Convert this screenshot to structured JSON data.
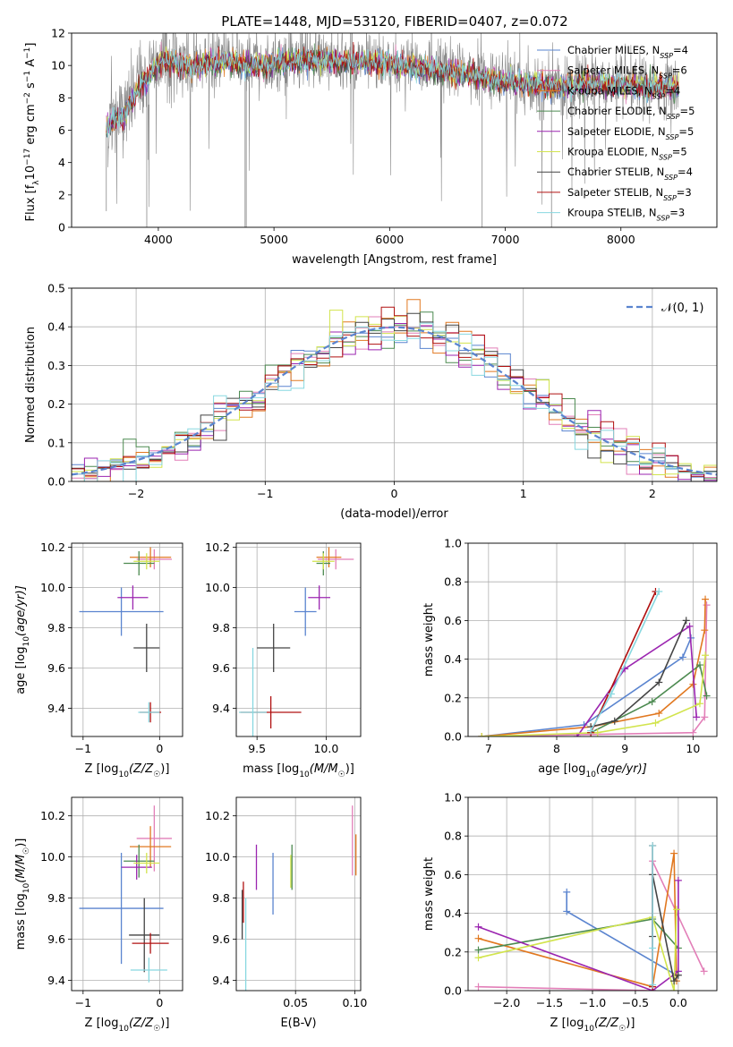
{
  "figure": {
    "title": "PLATE=1448, MJD=53120, FIBERID=0407, z=0.072"
  },
  "series_colors": {
    "Chabrier MILES": "#5a84cf",
    "Salpeter MILES": "#e27fb8",
    "Kroupa MILES": "#e17820",
    "Chabrier ELODIE": "#4c8a50",
    "Salpeter ELODIE": "#9b25b0",
    "Kroupa ELODIE": "#d2e44d",
    "Chabrier STELIB": "#444444",
    "Salpeter STELIB": "#b01010",
    "Kroupa STELIB": "#88d8e0"
  },
  "chart_data": [
    {
      "id": "spectrum",
      "type": "line",
      "xlabel": "wavelength [Angstrom, rest frame]",
      "ylabel_parts": [
        "Flux [f",
        "λ",
        "10",
        "−17",
        " erg cm",
        "−2",
        " s",
        "−1",
        " A",
        "−1",
        "]"
      ],
      "xlim": [
        3250,
        8830
      ],
      "ylim": [
        0,
        12
      ],
      "xticks": [
        "4000",
        "5000",
        "6000",
        "7000",
        "8000"
      ],
      "yticks": [
        "0",
        "2",
        "4",
        "6",
        "8",
        "10",
        "12"
      ],
      "legend_placement": "upper-right",
      "series": [
        {
          "name": "Chabrier MILES",
          "nssp": "4"
        },
        {
          "name": "Salpeter MILES",
          "nssp": "6"
        },
        {
          "name": "Kroupa MILES",
          "nssp": "4"
        },
        {
          "name": "Chabrier ELODIE",
          "nssp": "5"
        },
        {
          "name": "Salpeter ELODIE",
          "nssp": "5"
        },
        {
          "name": "Kroupa ELODIE",
          "nssp": "5"
        },
        {
          "name": "Chabrier STELIB",
          "nssp": "4"
        },
        {
          "name": "Salpeter STELIB",
          "nssp": "3"
        },
        {
          "name": "Kroupa STELIB",
          "nssp": "3"
        }
      ],
      "data_envelope": {
        "x": [
          3550,
          3600,
          3700,
          3800,
          3900,
          4000,
          4100,
          4200,
          4300,
          4400,
          4500,
          4600,
          4700,
          4800,
          4900,
          5000,
          5200,
          5400,
          5600,
          5800,
          6000,
          6200,
          6400,
          6600,
          6800,
          7000,
          7200,
          7400,
          7600,
          7800,
          8000,
          8200,
          8400,
          8500
        ],
        "y": [
          6.3,
          6.6,
          6.9,
          8.3,
          9.3,
          10.3,
          10.4,
          10.1,
          10.0,
          10.2,
          10.3,
          10.4,
          10.2,
          10.1,
          10.1,
          10.2,
          10.4,
          10.4,
          10.3,
          10.3,
          10.2,
          10.0,
          9.8,
          9.6,
          9.3,
          9.1,
          9.0,
          8.8,
          8.9,
          8.9,
          8.8,
          8.7,
          8.8,
          8.7
        ]
      }
    },
    {
      "id": "residuals",
      "type": "step",
      "xlabel": "(data-model)/error",
      "ylabel": "Normed distribution",
      "xlim": [
        -2.5,
        2.5
      ],
      "ylim": [
        0,
        0.5
      ],
      "xticks": [
        "−2",
        "−1",
        "0",
        "1",
        "2"
      ],
      "yticks": [
        "0.0",
        "0.1",
        "0.2",
        "0.3",
        "0.4",
        "0.5"
      ],
      "legend": "𝒩(0, 1)",
      "legend_placement": "upper-right",
      "reference": {
        "type": "normal",
        "mean": 0,
        "sigma": 1,
        "style": "dashed",
        "color": "#5a84cf"
      }
    },
    {
      "id": "age-vs-Z",
      "type": "errorbar",
      "xlabel_parts": [
        "Z [log",
        "10",
        "(Z/Z",
        "☉",
        ")]"
      ],
      "ylabel_parts": [
        "age  [log",
        "10",
        "(age/yr)]"
      ],
      "xlim": [
        -1.15,
        0.3
      ],
      "ylim": [
        9.26,
        10.22
      ],
      "xticks": [
        "−1",
        "0"
      ],
      "yticks": [
        "9.4",
        "9.6",
        "9.8",
        "10.0",
        "10.2"
      ],
      "points": [
        {
          "s": "Chabrier MILES",
          "x": -0.5,
          "xerr": 0.55,
          "y": 9.88,
          "yerr": 0.12
        },
        {
          "s": "Salpeter MILES",
          "x": -0.07,
          "xerr": 0.23,
          "y": 10.14,
          "yerr": 0.05
        },
        {
          "s": "Kroupa MILES",
          "x": -0.12,
          "xerr": 0.27,
          "y": 10.15,
          "yerr": 0.05
        },
        {
          "s": "Chabrier ELODIE",
          "x": -0.27,
          "xerr": 0.2,
          "y": 10.12,
          "yerr": 0.06
        },
        {
          "s": "Salpeter ELODIE",
          "x": -0.35,
          "xerr": 0.2,
          "y": 9.95,
          "yerr": 0.06
        },
        {
          "s": "Kroupa ELODIE",
          "x": -0.17,
          "xerr": 0.17,
          "y": 10.13,
          "yerr": 0.04
        },
        {
          "s": "Chabrier STELIB",
          "x": -0.17,
          "xerr": 0.17,
          "y": 9.7,
          "yerr": 0.12
        },
        {
          "s": "Salpeter STELIB",
          "x": -0.12,
          "xerr": 0.14,
          "y": 9.38,
          "yerr": 0.05
        },
        {
          "s": "Kroupa STELIB",
          "x": -0.14,
          "xerr": 0.14,
          "y": 9.38,
          "yerr": 0.05
        }
      ]
    },
    {
      "id": "age-vs-mass",
      "type": "errorbar",
      "xlabel_parts": [
        "mass [log",
        "10",
        "(M/M",
        "☉",
        ")]"
      ],
      "xlim": [
        9.35,
        10.25
      ],
      "ylim": [
        9.26,
        10.22
      ],
      "xticks": [
        "9.5",
        "10.0"
      ],
      "yticks": [
        "9.4",
        "9.6",
        "9.8",
        "10.0",
        "10.2"
      ],
      "points": [
        {
          "s": "Chabrier MILES",
          "x": 9.85,
          "xerr": 0.08,
          "y": 9.88,
          "yerr": 0.12
        },
        {
          "s": "Salpeter MILES",
          "x": 10.07,
          "xerr": 0.13,
          "y": 10.14,
          "yerr": 0.05
        },
        {
          "s": "Kroupa MILES",
          "x": 10.02,
          "xerr": 0.09,
          "y": 10.15,
          "yerr": 0.05
        },
        {
          "s": "Chabrier ELODIE",
          "x": 9.98,
          "xerr": 0.05,
          "y": 10.12,
          "yerr": 0.06
        },
        {
          "s": "Salpeter ELODIE",
          "x": 9.95,
          "xerr": 0.08,
          "y": 9.95,
          "yerr": 0.06
        },
        {
          "s": "Kroupa ELODIE",
          "x": 9.98,
          "xerr": 0.08,
          "y": 10.13,
          "yerr": 0.04
        },
        {
          "s": "Chabrier STELIB",
          "x": 9.62,
          "xerr": 0.12,
          "y": 9.7,
          "yerr": 0.12
        },
        {
          "s": "Salpeter STELIB",
          "x": 9.6,
          "xerr": 0.22,
          "y": 9.38,
          "yerr": 0.08
        },
        {
          "s": "Kroupa STELIB",
          "x": 9.47,
          "xerr": 0.1,
          "y": 9.38,
          "yerr": 0.32
        }
      ]
    },
    {
      "id": "weight-vs-age",
      "type": "line",
      "xlabel_parts": [
        "age  [log",
        "10",
        "(age/yr)]"
      ],
      "ylabel": "mass weight",
      "xlim": [
        6.7,
        10.35
      ],
      "ylim": [
        0,
        1
      ],
      "xticks": [
        "7",
        "8",
        "9",
        "10"
      ],
      "yticks": [
        "0.0",
        "0.2",
        "0.4",
        "0.6",
        "0.8",
        "1.0"
      ],
      "series": [
        {
          "s": "Chabrier MILES",
          "x": [
            6.9,
            8.4,
            9.85,
            9.97
          ],
          "y": [
            0.0,
            0.06,
            0.41,
            0.51
          ]
        },
        {
          "s": "Salpeter MILES",
          "x": [
            6.9,
            10.0,
            10.17,
            10.2
          ],
          "y": [
            0.0,
            0.02,
            0.1,
            0.68
          ]
        },
        {
          "s": "Kroupa MILES",
          "x": [
            6.9,
            8.5,
            9.5,
            10.0,
            10.17,
            10.18
          ],
          "y": [
            0.0,
            0.05,
            0.12,
            0.27,
            0.55,
            0.71
          ]
        },
        {
          "s": "Chabrier ELODIE",
          "x": [
            8.5,
            9.4,
            10.1,
            10.2
          ],
          "y": [
            0.02,
            0.18,
            0.37,
            0.21
          ]
        },
        {
          "s": "Salpeter ELODIE",
          "x": [
            8.3,
            9.0,
            9.95,
            10.05
          ],
          "y": [
            0.0,
            0.35,
            0.57,
            0.1
          ]
        },
        {
          "s": "Kroupa ELODIE",
          "x": [
            6.9,
            8.6,
            9.45,
            10.1,
            10.18
          ],
          "y": [
            0.0,
            0.02,
            0.07,
            0.17,
            0.42
          ]
        },
        {
          "s": "Chabrier STELIB",
          "x": [
            8.5,
            8.85,
            9.5,
            9.9
          ],
          "y": [
            0.05,
            0.08,
            0.28,
            0.6
          ]
        },
        {
          "s": "Salpeter STELIB",
          "x": [
            8.5,
            9.45
          ],
          "y": [
            0.02,
            0.75
          ]
        },
        {
          "s": "Kroupa STELIB",
          "x": [
            8.5,
            8.8,
            9.5
          ],
          "y": [
            0.03,
            0.22,
            0.75
          ]
        }
      ]
    },
    {
      "id": "mass-vs-Z",
      "type": "errorbar",
      "xlabel_parts": [
        "Z [log",
        "10",
        "(Z/Z",
        "☉",
        ")]"
      ],
      "ylabel_parts": [
        "mass [log",
        "10",
        "(M/M",
        "☉",
        ")]"
      ],
      "xlim": [
        -1.15,
        0.3
      ],
      "ylim": [
        9.35,
        10.29
      ],
      "xticks": [
        "−1",
        "0"
      ],
      "yticks": [
        "9.4",
        "9.6",
        "9.8",
        "10.0",
        "10.2"
      ],
      "points": [
        {
          "s": "Chabrier MILES",
          "x": -0.5,
          "xerr": 0.55,
          "y": 9.75,
          "yerr": 0.27
        },
        {
          "s": "Salpeter MILES",
          "x": -0.07,
          "xerr": 0.23,
          "y": 10.09,
          "yerr": 0.16
        },
        {
          "s": "Kroupa MILES",
          "x": -0.12,
          "xerr": 0.27,
          "y": 10.05,
          "yerr": 0.1
        },
        {
          "s": "Chabrier ELODIE",
          "x": -0.27,
          "xerr": 0.2,
          "y": 9.98,
          "yerr": 0.08
        },
        {
          "s": "Salpeter ELODIE",
          "x": -0.3,
          "xerr": 0.2,
          "y": 9.95,
          "yerr": 0.06
        },
        {
          "s": "Kroupa ELODIE",
          "x": -0.17,
          "xerr": 0.17,
          "y": 9.97,
          "yerr": 0.05
        },
        {
          "s": "Chabrier STELIB",
          "x": -0.2,
          "xerr": 0.2,
          "y": 9.62,
          "yerr": 0.18
        },
        {
          "s": "Salpeter STELIB",
          "x": -0.12,
          "xerr": 0.24,
          "y": 9.58,
          "yerr": 0.05
        },
        {
          "s": "Kroupa STELIB",
          "x": -0.14,
          "xerr": 0.24,
          "y": 9.45,
          "yerr": 0.06
        }
      ]
    },
    {
      "id": "mass-vs-EBV",
      "type": "errorbar",
      "xlabel": "E(B-V)",
      "xlim": [
        0.0,
        0.105
      ],
      "ylim": [
        9.35,
        10.29
      ],
      "xticks": [
        "0.05",
        "0.10"
      ],
      "yticks": [
        "9.4",
        "9.6",
        "9.8",
        "10.0",
        "10.2"
      ],
      "points": [
        {
          "s": "Chabrier MILES",
          "x": 0.031,
          "xerr": 0,
          "y": 9.87,
          "yerr": 0.15
        },
        {
          "s": "Salpeter MILES",
          "x": 0.098,
          "xerr": 0,
          "y": 10.08,
          "yerr": 0.17
        },
        {
          "s": "Kroupa MILES",
          "x": 0.101,
          "xerr": 0,
          "y": 10.01,
          "yerr": 0.1
        },
        {
          "s": "Chabrier ELODIE",
          "x": 0.047,
          "xerr": 0,
          "y": 9.95,
          "yerr": 0.11
        },
        {
          "s": "Salpeter ELODIE",
          "x": 0.017,
          "xerr": 0,
          "y": 9.95,
          "yerr": 0.11
        },
        {
          "s": "Kroupa ELODIE",
          "x": 0.046,
          "xerr": 0,
          "y": 9.93,
          "yerr": 0.08
        },
        {
          "s": "Chabrier STELIB",
          "x": 0.005,
          "xerr": 0,
          "y": 9.72,
          "yerr": 0.12
        },
        {
          "s": "Salpeter STELIB",
          "x": 0.006,
          "xerr": 0,
          "y": 9.78,
          "yerr": 0.1
        },
        {
          "s": "Kroupa STELIB",
          "x": 0.008,
          "xerr": 0,
          "y": 9.55,
          "yerr": 0.25
        }
      ]
    },
    {
      "id": "weight-vs-Z",
      "type": "line",
      "xlabel_parts": [
        "Z [log",
        "10",
        "(Z/Z",
        "☉",
        ")]"
      ],
      "ylabel": "mass weight",
      "xlim": [
        -2.45,
        0.45
      ],
      "ylim": [
        0,
        1
      ],
      "xticks": [
        "−2.0",
        "−1.5",
        "−1.0",
        "−0.5",
        "0.0"
      ],
      "yticks": [
        "0.0",
        "0.2",
        "0.4",
        "0.6",
        "0.8",
        "1.0"
      ],
      "series": [
        {
          "s": "Chabrier MILES",
          "x": [
            -1.3,
            -1.3,
            -0.02
          ],
          "y": [
            0.51,
            0.41,
            0.08
          ]
        },
        {
          "s": "Salpeter MILES",
          "x": [
            -2.33,
            -0.3,
            -0.3,
            0.3
          ],
          "y": [
            0.02,
            0.0,
            0.67,
            0.1
          ]
        },
        {
          "s": "Kroupa MILES",
          "x": [
            -2.33,
            -0.3,
            -0.05,
            -0.02
          ],
          "y": [
            0.27,
            0.02,
            0.71,
            0.05
          ]
        },
        {
          "s": "Chabrier ELODIE",
          "x": [
            -2.33,
            -0.3,
            0.0
          ],
          "y": [
            0.21,
            0.37,
            0.22
          ]
        },
        {
          "s": "Salpeter ELODIE",
          "x": [
            -2.33,
            -0.3,
            0.0,
            0.0
          ],
          "y": [
            0.33,
            0.0,
            0.1,
            0.57
          ]
        },
        {
          "s": "Kroupa ELODIE",
          "x": [
            -2.33,
            -0.3,
            -0.05,
            -0.02
          ],
          "y": [
            0.17,
            0.38,
            0.0,
            0.42
          ]
        },
        {
          "s": "Chabrier STELIB",
          "x": [
            -0.3,
            -0.3,
            -0.05,
            0.0
          ],
          "y": [
            0.28,
            0.6,
            0.05,
            0.08
          ]
        },
        {
          "s": "Salpeter STELIB",
          "x": [
            -0.3,
            -0.3
          ],
          "y": [
            0.02,
            0.75
          ]
        },
        {
          "s": "Kroupa STELIB",
          "x": [
            -0.3,
            -0.3,
            -0.3
          ],
          "y": [
            0.03,
            0.22,
            0.75
          ]
        }
      ]
    }
  ]
}
